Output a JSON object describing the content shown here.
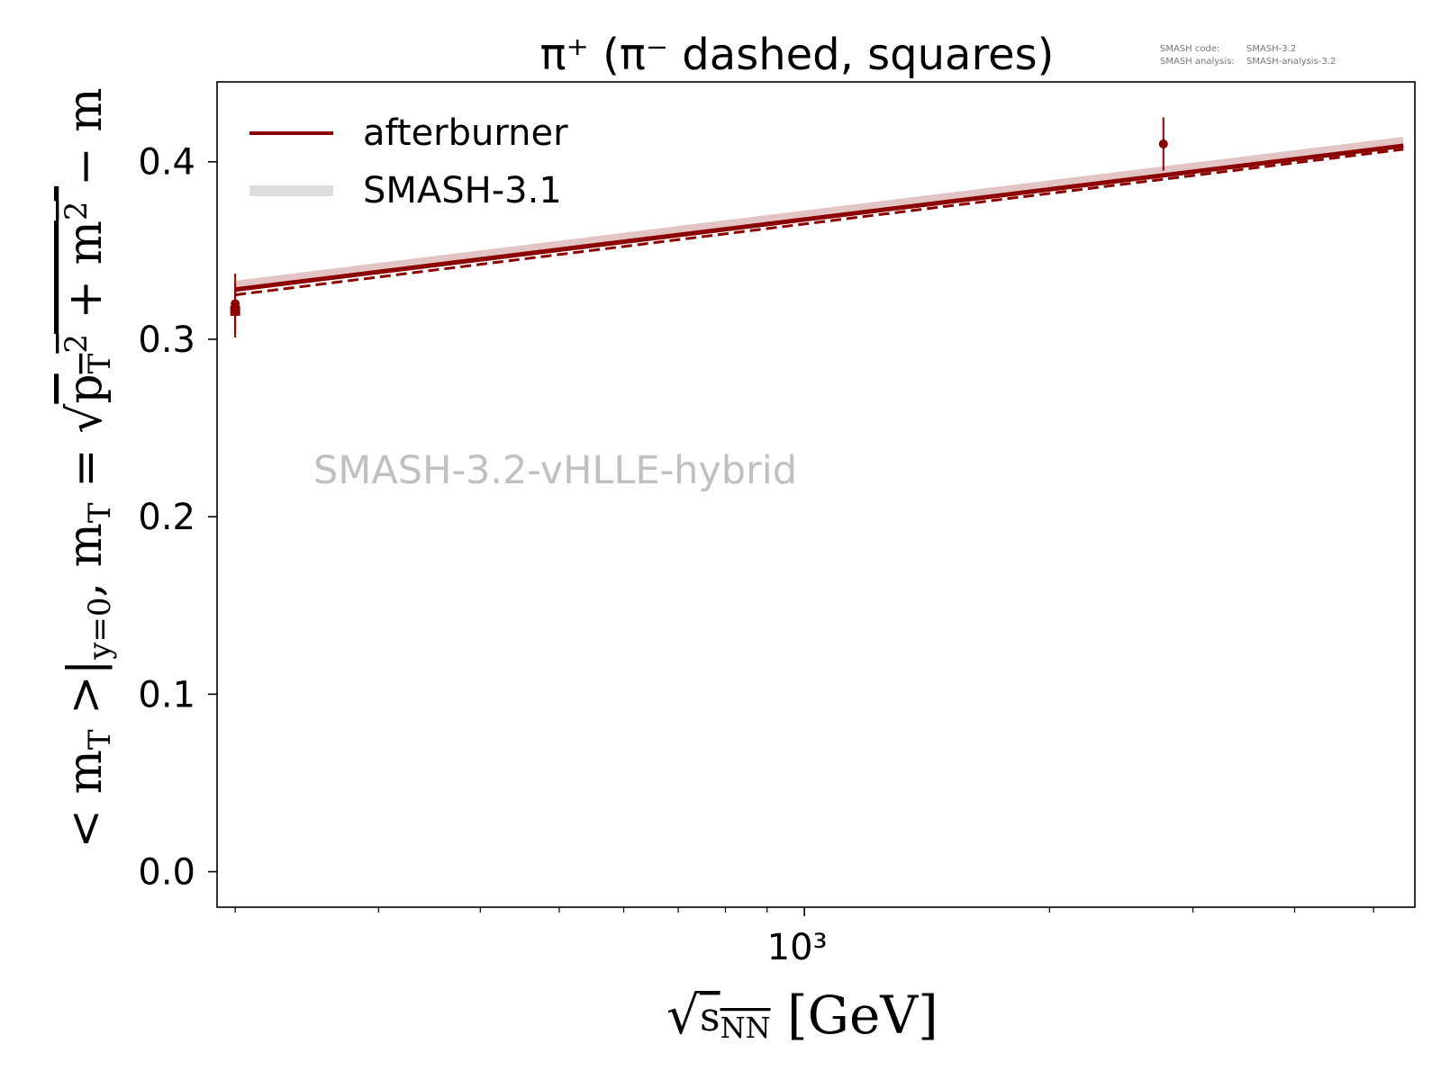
{
  "chart_data": {
    "type": "line",
    "title": "π⁺ (π⁻ dashed, squares)",
    "xlabel": "√sNN [GeV]",
    "ylabel": "<mT>|y=0, mT = √(pT² + m²) − m",
    "x_scale": "log",
    "xlim": [
      190,
      5620
    ],
    "ylim": [
      -0.02,
      0.445
    ],
    "x_ticks": [
      {
        "value": 1000,
        "label": "10³"
      }
    ],
    "y_ticks": [
      0.0,
      0.1,
      0.2,
      0.3,
      0.4
    ],
    "y_tick_labels": [
      "0.0",
      "0.1",
      "0.2",
      "0.3",
      "0.4"
    ],
    "grid": false,
    "legend_placement": "top-left",
    "watermark": "SMASH-3.2-vHLLE-hybrid",
    "version_info": [
      {
        "label": "SMASH code:",
        "value": "SMASH-3.2"
      },
      {
        "label": "SMASH analysis:",
        "value": "SMASH-analysis-3.2"
      }
    ],
    "colors": {
      "afterburner": "#8b0000",
      "smash31": "#dddddd",
      "watermark": "#c0c0c0"
    },
    "series": [
      {
        "name": "afterburner",
        "style": "solid",
        "x": [
          200,
          5440
        ],
        "y": [
          0.328,
          0.409
        ]
      },
      {
        "style": "dashed",
        "x": [
          200,
          5440
        ],
        "y": [
          0.325,
          0.407
        ]
      },
      {
        "name": "SMASH-3.1",
        "style": "thick-light",
        "x": [
          200,
          5440
        ],
        "y": [
          0.33,
          0.411
        ]
      }
    ],
    "data_points": [
      {
        "marker": "circle",
        "x": 200,
        "y": 0.32,
        "yerr": 0.017
      },
      {
        "marker": "square",
        "x": 200,
        "y": 0.316,
        "yerr": 0.015
      },
      {
        "marker": "circle",
        "x": 2760,
        "y": 0.41,
        "yerr": 0.015
      }
    ]
  }
}
